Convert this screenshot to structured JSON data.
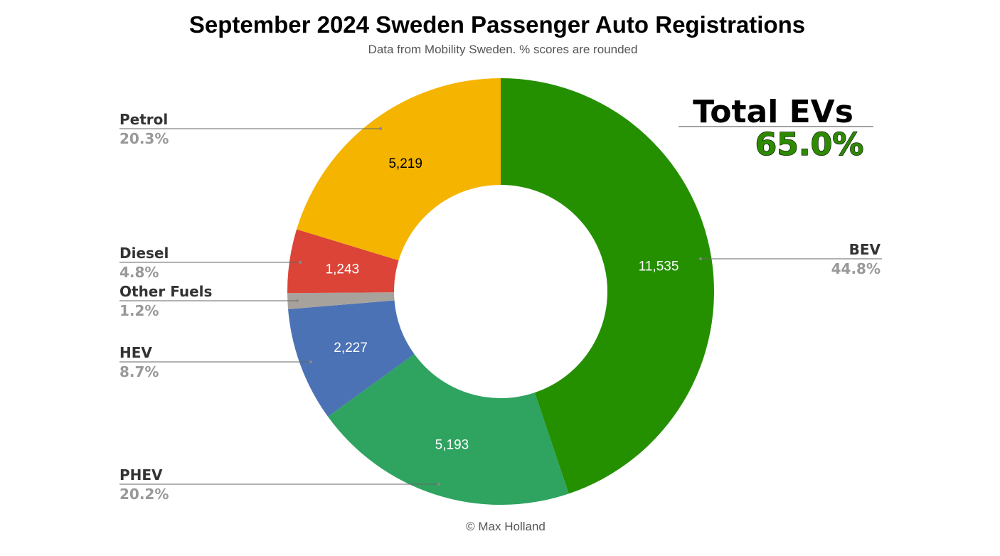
{
  "chart_data": {
    "type": "pie",
    "title": "September 2024 Sweden Passenger Auto Registrations",
    "subtitle": "Data from Mobility Sweden. % scores are rounded",
    "credit": "© Max Holland",
    "donut": true,
    "slices": [
      {
        "name": "BEV",
        "value": 11535,
        "value_label": "11,535",
        "percent_label": "44.8%",
        "color": "#249000",
        "value_text_color": "#ffffff"
      },
      {
        "name": "PHEV",
        "value": 5193,
        "value_label": "5,193",
        "percent_label": "20.2%",
        "color": "#2fa360",
        "value_text_color": "#ffffff"
      },
      {
        "name": "HEV",
        "value": 2227,
        "value_label": "2,227",
        "percent_label": "8.7%",
        "color": "#4b72b4",
        "value_text_color": "#ffffff"
      },
      {
        "name": "Other Fuels",
        "value": 310,
        "value_label": "",
        "percent_label": "1.2%",
        "color": "#a8a29c",
        "value_text_color": "#ffffff"
      },
      {
        "name": "Diesel",
        "value": 1243,
        "value_label": "1,243",
        "percent_label": "4.8%",
        "color": "#db4437",
        "value_text_color": "#ffffff"
      },
      {
        "name": "Petrol",
        "value": 5219,
        "value_label": "5,219",
        "percent_label": "20.3%",
        "color": "#f4b400",
        "value_text_color": "#000000"
      }
    ],
    "annotation": {
      "title": "Total EVs",
      "value": "65.0%",
      "value_color": "#2e8b00"
    }
  }
}
